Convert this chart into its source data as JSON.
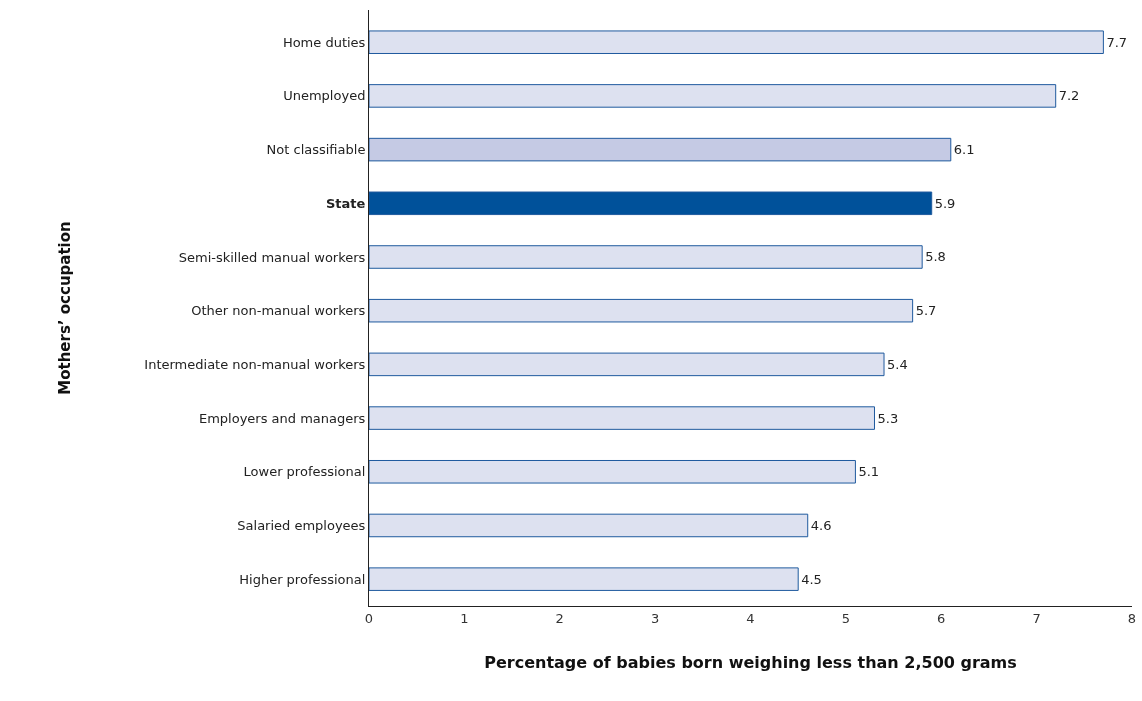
{
  "chart_data": {
    "type": "bar",
    "orientation": "horizontal",
    "xlabel": "Percentage of babies born weighing less than 2,500 grams",
    "ylabel": "Mothers’ occupation",
    "categories": [
      "Home duties",
      "Unemployed",
      "Not classifiable",
      "State",
      "Semi-skilled manual workers",
      "Other non-manual workers",
      "Intermediate non-manual workers",
      "Employers and managers",
      "Lower professional",
      "Salaried employees",
      "Higher professional"
    ],
    "values": [
      7.7,
      7.2,
      6.1,
      5.9,
      5.8,
      5.7,
      5.4,
      5.3,
      5.1,
      4.6,
      4.5
    ],
    "colors": [
      "#dde1f0",
      "#dde1f0",
      "#c5cae4",
      "#00519a",
      "#dde1f0",
      "#dde1f0",
      "#dde1f0",
      "#dde1f0",
      "#dde1f0",
      "#dde1f0",
      "#dde1f0"
    ],
    "xlim": [
      0,
      8
    ],
    "xticks": [
      0,
      1,
      2,
      3,
      4,
      5,
      6,
      7,
      8
    ],
    "data_labels": true
  }
}
